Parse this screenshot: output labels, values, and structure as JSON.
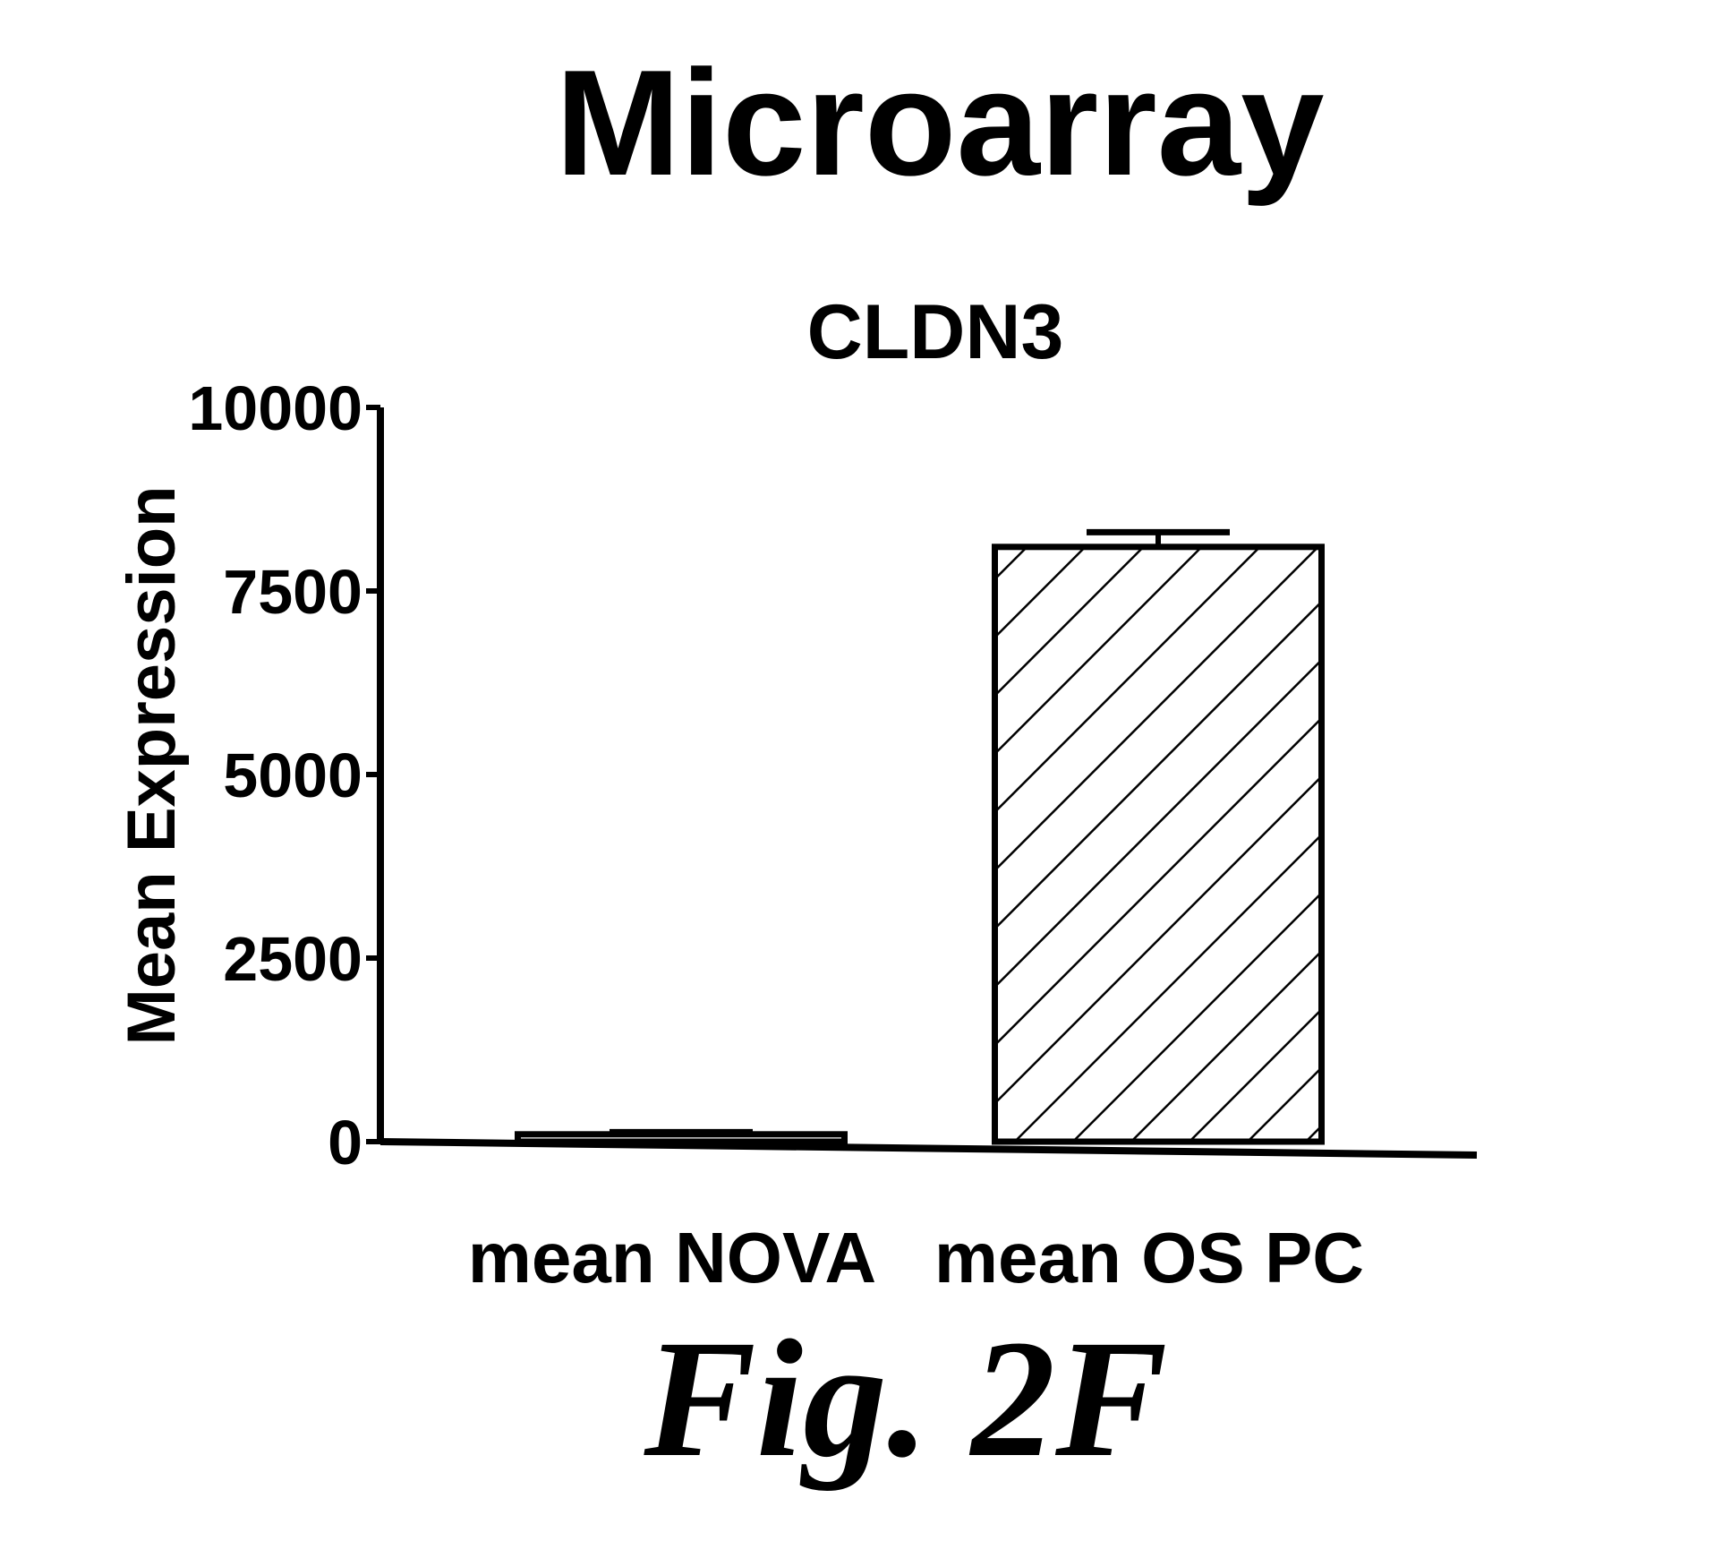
{
  "page_title": "Microarray",
  "figure_caption": "Fig. 2F",
  "colors": {
    "ink": "#000000",
    "background": "#ffffff"
  },
  "chart_data": {
    "type": "bar",
    "title": "CLDN3",
    "xlabel": "",
    "ylabel": "Mean Expression",
    "categories": [
      "mean NOVA",
      "mean OS PC"
    ],
    "values": [
      100,
      8100
    ],
    "error": [
      30,
      200
    ],
    "ylim": [
      0,
      10000
    ],
    "yticks": [
      0,
      2500,
      5000,
      7500,
      10000
    ],
    "ytick_labels": [
      "0",
      "2500",
      "5000",
      "7500",
      "10000"
    ],
    "bar_fills": [
      "hollow",
      "diagonal-hatch"
    ],
    "grid": false
  }
}
